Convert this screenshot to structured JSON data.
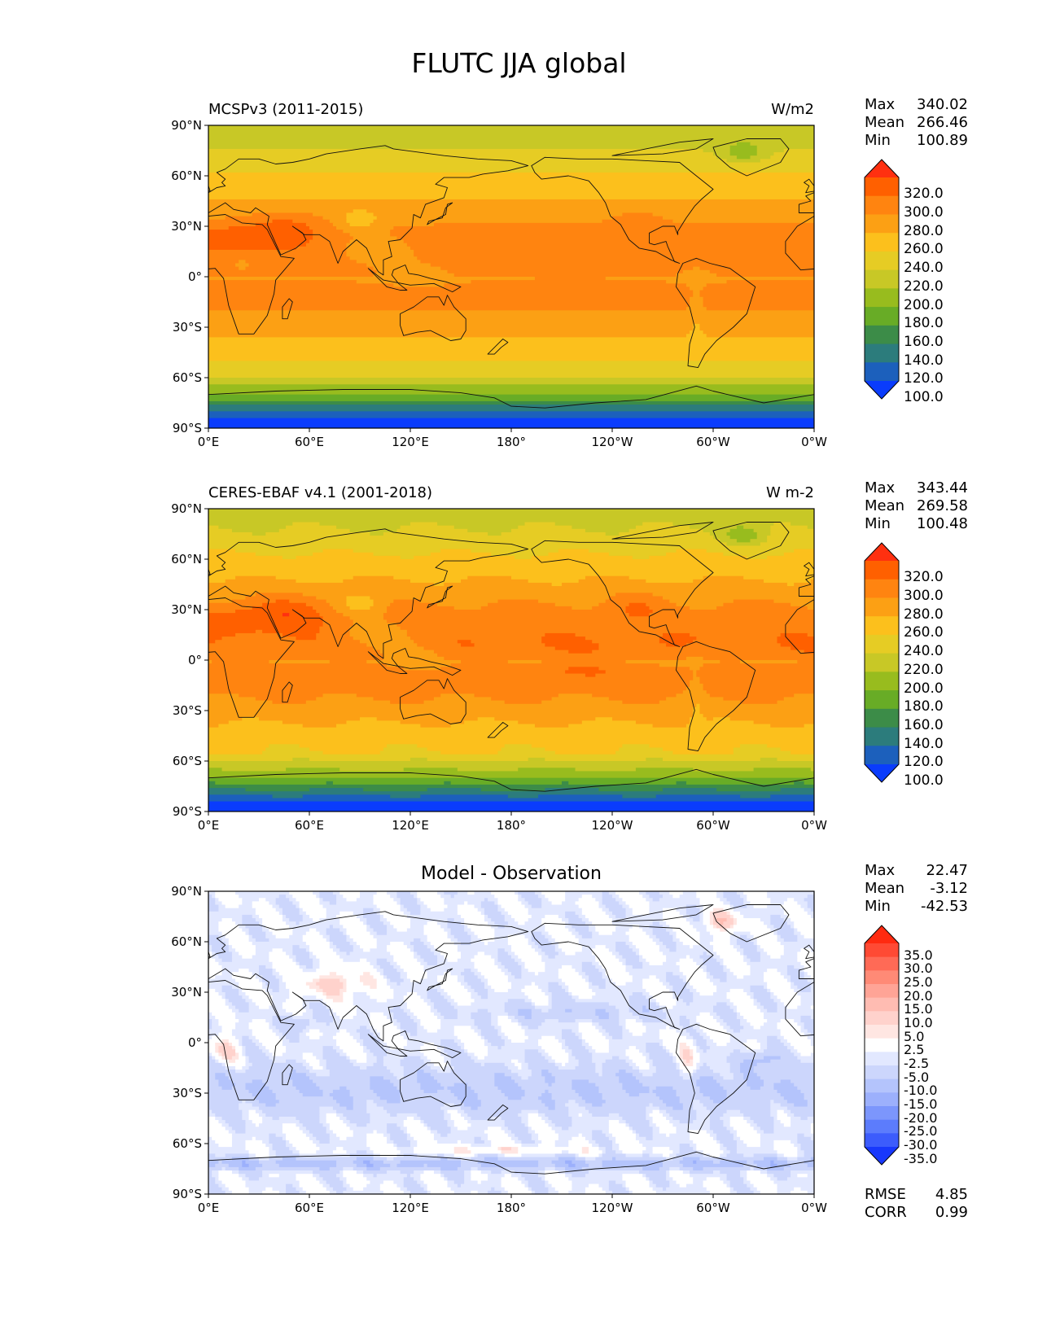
{
  "figure": {
    "title": "FLUTC JJA global"
  },
  "lat_ticks": [
    "90°N",
    "60°N",
    "30°N",
    "0°",
    "30°S",
    "60°S",
    "90°S"
  ],
  "lon_ticks": [
    "0°E",
    "60°E",
    "120°E",
    "180°",
    "120°W",
    "60°W",
    "0°W"
  ],
  "panels": [
    {
      "title": "MCSPv3 (2011-2015)",
      "units": "W/m2",
      "stats": {
        "max_label": "Max",
        "max": "340.02",
        "mean_label": "Mean",
        "mean": "266.46",
        "min_label": "Min",
        "min": "100.89"
      },
      "colorbar": {
        "labels": [
          "320.0",
          "300.0",
          "280.0",
          "260.0",
          "240.0",
          "220.0",
          "200.0",
          "180.0",
          "160.0",
          "140.0",
          "120.0",
          "100.0"
        ],
        "colors": [
          "#ff3010",
          "#ff6000",
          "#ff8410",
          "#fca014",
          "#fcc01c",
          "#e6cc24",
          "#c8c826",
          "#98bc1e",
          "#68ac26",
          "#3c8c48",
          "#2c7c7c",
          "#1c60bc",
          "#0a3cfc"
        ]
      }
    },
    {
      "title": "CERES-EBAF v4.1 (2001-2018)",
      "units": "W m-2",
      "stats": {
        "max_label": "Max",
        "max": "343.44",
        "mean_label": "Mean",
        "mean": "269.58",
        "min_label": "Min",
        "min": "100.48"
      },
      "colorbar": {
        "labels": [
          "320.0",
          "300.0",
          "280.0",
          "260.0",
          "240.0",
          "220.0",
          "200.0",
          "180.0",
          "160.0",
          "140.0",
          "120.0",
          "100.0"
        ],
        "colors": [
          "#ff3010",
          "#ff6000",
          "#ff8410",
          "#fca014",
          "#fcc01c",
          "#e6cc24",
          "#c8c826",
          "#98bc1e",
          "#68ac26",
          "#3c8c48",
          "#2c7c7c",
          "#1c60bc",
          "#0a3cfc"
        ]
      }
    },
    {
      "title": "Model - Observation",
      "units": "",
      "stats": {
        "max_label": "Max",
        "max": "22.47",
        "mean_label": "Mean",
        "mean": "-3.12",
        "min_label": "Min",
        "min": "-42.53",
        "rmse_label": "RMSE",
        "rmse": "4.85",
        "corr_label": "CORR",
        "corr": "0.99"
      },
      "colorbar": {
        "labels": [
          "35.0",
          "30.0",
          "25.0",
          "20.0",
          "15.0",
          "10.0",
          "5.0",
          "2.5",
          "-2.5",
          "-5.0",
          "-10.0",
          "-15.0",
          "-20.0",
          "-25.0",
          "-30.0",
          "-35.0"
        ],
        "colors": [
          "#ff2a10",
          "#ff4a34",
          "#ff6a56",
          "#ff8a76",
          "#ffa496",
          "#ffbcb2",
          "#ffd2cc",
          "#ffe6e2",
          "#ffffff",
          "#e2e8ff",
          "#ccd6fc",
          "#b4c4fc",
          "#9cb0fc",
          "#7c96fc",
          "#5c7cfc",
          "#3c5cfc",
          "#1838fc"
        ]
      }
    }
  ]
}
